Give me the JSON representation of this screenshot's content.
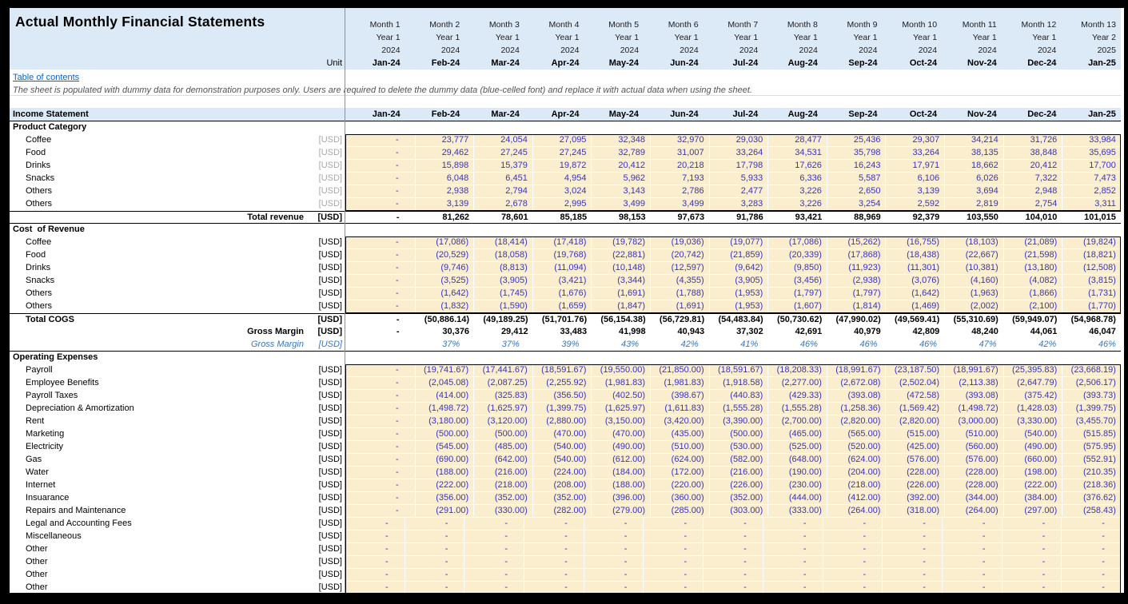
{
  "sheet": {
    "title": "Actual Monthly Financial Statements",
    "unit_label": "Unit",
    "toc_link": "Table of contents",
    "disclaimer": "The sheet is populated with dummy data for demonstration purposes only. Users are required to delete the dummy data (blue-celled font) and replace it with actual data when using the sheet.",
    "statement_header": "Income Statement"
  },
  "colors": {
    "header_bg": "#DCE9F7",
    "cell_bg": "#FBEECE",
    "value_blue": "#3333CC",
    "percent_blue": "#2E79D0",
    "link_blue": "#0C64C8"
  },
  "columns": [
    {
      "month": "Month 1",
      "year_label": "Year 1",
      "year": "2024",
      "date": "Jan-24"
    },
    {
      "month": "Month 2",
      "year_label": "Year 1",
      "year": "2024",
      "date": "Feb-24"
    },
    {
      "month": "Month 3",
      "year_label": "Year 1",
      "year": "2024",
      "date": "Mar-24"
    },
    {
      "month": "Month 4",
      "year_label": "Year 1",
      "year": "2024",
      "date": "Apr-24"
    },
    {
      "month": "Month 5",
      "year_label": "Year 1",
      "year": "2024",
      "date": "May-24"
    },
    {
      "month": "Month 6",
      "year_label": "Year 1",
      "year": "2024",
      "date": "Jun-24"
    },
    {
      "month": "Month 7",
      "year_label": "Year 1",
      "year": "2024",
      "date": "Jul-24"
    },
    {
      "month": "Month 8",
      "year_label": "Year 1",
      "year": "2024",
      "date": "Aug-24"
    },
    {
      "month": "Month 9",
      "year_label": "Year 1",
      "year": "2024",
      "date": "Sep-24"
    },
    {
      "month": "Month 10",
      "year_label": "Year 1",
      "year": "2024",
      "date": "Oct-24"
    },
    {
      "month": "Month 11",
      "year_label": "Year 1",
      "year": "2024",
      "date": "Nov-24"
    },
    {
      "month": "Month 12",
      "year_label": "Year 1",
      "year": "2024",
      "date": "Dec-24"
    },
    {
      "month": "Month 13",
      "year_label": "Year 2",
      "year": "2025",
      "date": "Jan-25"
    }
  ],
  "rows": [
    {
      "kind": "section",
      "label": "Product Category"
    },
    {
      "kind": "data",
      "label": "Coffee",
      "unit": "[USD]",
      "unit_style": "gray",
      "values": [
        "-",
        "23,777",
        "24,054",
        "27,095",
        "32,348",
        "32,970",
        "29,030",
        "28,477",
        "25,436",
        "29,307",
        "34,214",
        "31,726",
        "33,984"
      ]
    },
    {
      "kind": "data",
      "label": "Food",
      "unit": "[USD]",
      "unit_style": "gray",
      "values": [
        "-",
        "29,462",
        "27,245",
        "27,245",
        "32,789",
        "31,007",
        "33,264",
        "34,531",
        "35,798",
        "33,264",
        "38,135",
        "38,848",
        "35,695"
      ]
    },
    {
      "kind": "data",
      "label": "Drinks",
      "unit": "[USD]",
      "unit_style": "gray",
      "values": [
        "-",
        "15,898",
        "15,379",
        "19,872",
        "20,412",
        "20,218",
        "17,798",
        "17,626",
        "16,243",
        "17,971",
        "18,662",
        "20,412",
        "17,700"
      ]
    },
    {
      "kind": "data",
      "label": "Snacks",
      "unit": "[USD]",
      "unit_style": "gray",
      "values": [
        "-",
        "6,048",
        "6,451",
        "4,954",
        "5,962",
        "7,193",
        "5,933",
        "6,336",
        "5,587",
        "6,106",
        "6,026",
        "7,322",
        "7,473"
      ]
    },
    {
      "kind": "data",
      "label": "Others",
      "unit": "[USD]",
      "unit_style": "gray",
      "values": [
        "-",
        "2,938",
        "2,794",
        "3,024",
        "3,143",
        "2,786",
        "2,477",
        "3,226",
        "2,650",
        "3,139",
        "3,694",
        "2,948",
        "2,852"
      ]
    },
    {
      "kind": "data",
      "label": "Others",
      "unit": "[USD]",
      "unit_style": "gray",
      "values": [
        "-",
        "3,139",
        "2,678",
        "2,995",
        "3,499",
        "3,499",
        "3,283",
        "3,226",
        "3,254",
        "2,592",
        "2,819",
        "2,754",
        "3,311"
      ]
    },
    {
      "kind": "total-right",
      "label": "Total revenue",
      "unit": "[USD]",
      "unit_style": "bold",
      "values": [
        "-",
        "81,262",
        "78,601",
        "85,185",
        "98,153",
        "97,673",
        "91,786",
        "93,421",
        "88,969",
        "92,379",
        "103,550",
        "104,010",
        "101,015"
      ]
    },
    {
      "kind": "section",
      "label": "Cost  of Revenue"
    },
    {
      "kind": "data",
      "label": "Coffee",
      "unit": "[USD]",
      "unit_style": "plain",
      "values": [
        "-",
        "(17,086)",
        "(18,414)",
        "(17,418)",
        "(19,782)",
        "(19,036)",
        "(19,077)",
        "(17,086)",
        "(15,262)",
        "(16,755)",
        "(18,103)",
        "(21,089)",
        "(19,824)"
      ]
    },
    {
      "kind": "data",
      "label": "Food",
      "unit": "[USD]",
      "unit_style": "plain",
      "values": [
        "-",
        "(20,529)",
        "(18,058)",
        "(19,768)",
        "(22,881)",
        "(20,742)",
        "(21,859)",
        "(20,339)",
        "(17,868)",
        "(18,438)",
        "(22,667)",
        "(21,598)",
        "(18,821)"
      ]
    },
    {
      "kind": "data",
      "label": "Drinks",
      "unit": "[USD]",
      "unit_style": "plain",
      "values": [
        "-",
        "(9,746)",
        "(8,813)",
        "(11,094)",
        "(10,148)",
        "(12,597)",
        "(9,642)",
        "(9,850)",
        "(11,923)",
        "(11,301)",
        "(10,381)",
        "(13,180)",
        "(12,508)"
      ]
    },
    {
      "kind": "data",
      "label": "Snacks",
      "unit": "[USD]",
      "unit_style": "plain",
      "values": [
        "-",
        "(3,525)",
        "(3,905)",
        "(3,421)",
        "(3,344)",
        "(4,355)",
        "(3,905)",
        "(3,456)",
        "(2,938)",
        "(3,076)",
        "(4,160)",
        "(4,082)",
        "(3,815)"
      ]
    },
    {
      "kind": "data",
      "label": "Others",
      "unit": "[USD]",
      "unit_style": "plain",
      "values": [
        "-",
        "(1,642)",
        "(1,745)",
        "(1,676)",
        "(1,691)",
        "(1,788)",
        "(1,953)",
        "(1,797)",
        "(1,797)",
        "(1,642)",
        "(1,963)",
        "(1,866)",
        "(1,731)"
      ]
    },
    {
      "kind": "data",
      "label": "Others",
      "unit": "[USD]",
      "unit_style": "plain",
      "values": [
        "-",
        "(1,832)",
        "(1,590)",
        "(1,659)",
        "(1,847)",
        "(1,691)",
        "(1,953)",
        "(1,607)",
        "(1,814)",
        "(1,469)",
        "(2,002)",
        "(2,100)",
        "(1,770)"
      ]
    },
    {
      "kind": "total-left",
      "label": "Total COGS",
      "unit": "[USD]",
      "unit_style": "bold",
      "values": [
        "-",
        "(50,886.14)",
        "(49,189.25)",
        "(51,701.76)",
        "(56,154.38)",
        "(56,729.81)",
        "(54,483.84)",
        "(50,730.62)",
        "(47,990.02)",
        "(49,569.41)",
        "(55,310.69)",
        "(59,949.07)",
        "(54,968.78)"
      ]
    },
    {
      "kind": "total-right",
      "label": "Gross Margin",
      "unit": "[USD]",
      "unit_style": "bold",
      "values": [
        "-",
        "30,376",
        "29,412",
        "33,483",
        "41,998",
        "40,943",
        "37,302",
        "42,691",
        "40,979",
        "42,809",
        "48,240",
        "44,061",
        "46,047"
      ]
    },
    {
      "kind": "pct",
      "label": "Gross Margin",
      "unit": "[USD]",
      "unit_style": "pct",
      "values": [
        "",
        "37%",
        "37%",
        "39%",
        "43%",
        "42%",
        "41%",
        "46%",
        "46%",
        "46%",
        "47%",
        "42%",
        "46%"
      ]
    },
    {
      "kind": "section",
      "label": "Operating Expenses"
    },
    {
      "kind": "data",
      "label": "Payroll",
      "unit": "[USD]",
      "unit_style": "plain",
      "values": [
        "-",
        "(19,741.67)",
        "(17,441.67)",
        "(18,591.67)",
        "(19,550.00)",
        "(21,850.00)",
        "(18,591.67)",
        "(18,208.33)",
        "(18,991.67)",
        "(23,187.50)",
        "(18,991.67)",
        "(25,395.83)",
        "(23,668.19)"
      ]
    },
    {
      "kind": "data",
      "label": "Employee Benefits",
      "unit": "[USD]",
      "unit_style": "plain",
      "values": [
        "-",
        "(2,045.08)",
        "(2,087.25)",
        "(2,255.92)",
        "(1,981.83)",
        "(1,981.83)",
        "(1,918.58)",
        "(2,277.00)",
        "(2,672.08)",
        "(2,502.04)",
        "(2,113.38)",
        "(2,647.79)",
        "(2,506.17)"
      ]
    },
    {
      "kind": "data",
      "label": "Payroll Taxes",
      "unit": "[USD]",
      "unit_style": "plain",
      "values": [
        "-",
        "(414.00)",
        "(325.83)",
        "(356.50)",
        "(402.50)",
        "(398.67)",
        "(440.83)",
        "(429.33)",
        "(393.08)",
        "(472.58)",
        "(393.08)",
        "(375.42)",
        "(393.73)"
      ]
    },
    {
      "kind": "data",
      "label": "Depreciation & Amortization",
      "unit": "[USD]",
      "unit_style": "plain",
      "values": [
        "-",
        "(1,498.72)",
        "(1,625.97)",
        "(1,399.75)",
        "(1,625.97)",
        "(1,611.83)",
        "(1,555.28)",
        "(1,555.28)",
        "(1,258.36)",
        "(1,569.42)",
        "(1,498.72)",
        "(1,428.03)",
        "(1,399.75)"
      ]
    },
    {
      "kind": "data",
      "label": "Rent",
      "unit": "[USD]",
      "unit_style": "plain",
      "values": [
        "-",
        "(3,180.00)",
        "(3,120.00)",
        "(2,880.00)",
        "(3,150.00)",
        "(3,420.00)",
        "(3,390.00)",
        "(2,700.00)",
        "(2,820.00)",
        "(2,820.00)",
        "(3,000.00)",
        "(3,330.00)",
        "(3,455.70)"
      ]
    },
    {
      "kind": "data",
      "label": "Marketing",
      "unit": "[USD]",
      "unit_style": "plain",
      "values": [
        "-",
        "(500.00)",
        "(500.00)",
        "(470.00)",
        "(470.00)",
        "(435.00)",
        "(500.00)",
        "(465.00)",
        "(565.00)",
        "(515.00)",
        "(510.00)",
        "(540.00)",
        "(515.85)"
      ]
    },
    {
      "kind": "data",
      "label": "Electricity",
      "unit": "[USD]",
      "unit_style": "plain",
      "values": [
        "-",
        "(545.00)",
        "(485.00)",
        "(540.00)",
        "(490.00)",
        "(510.00)",
        "(530.00)",
        "(525.00)",
        "(520.00)",
        "(425.00)",
        "(560.00)",
        "(490.00)",
        "(575.95)"
      ]
    },
    {
      "kind": "data",
      "label": "Gas",
      "unit": "[USD]",
      "unit_style": "plain",
      "values": [
        "-",
        "(690.00)",
        "(642.00)",
        "(540.00)",
        "(612.00)",
        "(624.00)",
        "(582.00)",
        "(648.00)",
        "(624.00)",
        "(576.00)",
        "(576.00)",
        "(660.00)",
        "(552.91)"
      ]
    },
    {
      "kind": "data",
      "label": "Water",
      "unit": "[USD]",
      "unit_style": "plain",
      "values": [
        "-",
        "(188.00)",
        "(216.00)",
        "(224.00)",
        "(184.00)",
        "(172.00)",
        "(216.00)",
        "(190.00)",
        "(204.00)",
        "(228.00)",
        "(228.00)",
        "(198.00)",
        "(210.35)"
      ]
    },
    {
      "kind": "data",
      "label": "Internet",
      "unit": "[USD]",
      "unit_style": "plain",
      "values": [
        "-",
        "(222.00)",
        "(218.00)",
        "(208.00)",
        "(188.00)",
        "(220.00)",
        "(226.00)",
        "(230.00)",
        "(218.00)",
        "(226.00)",
        "(228.00)",
        "(222.00)",
        "(218.36)"
      ]
    },
    {
      "kind": "data",
      "label": "Insuarance",
      "unit": "[USD]",
      "unit_style": "plain",
      "values": [
        "-",
        "(356.00)",
        "(352.00)",
        "(352.00)",
        "(396.00)",
        "(360.00)",
        "(352.00)",
        "(444.00)",
        "(412.00)",
        "(392.00)",
        "(344.00)",
        "(384.00)",
        "(376.62)"
      ]
    },
    {
      "kind": "data",
      "label": "Repairs and Maintenance",
      "unit": "[USD]",
      "unit_style": "plain",
      "values": [
        "-",
        "(291.00)",
        "(330.00)",
        "(282.00)",
        "(279.00)",
        "(285.00)",
        "(303.00)",
        "(333.00)",
        "(264.00)",
        "(318.00)",
        "(264.00)",
        "(297.00)",
        "(258.43)"
      ]
    },
    {
      "kind": "data",
      "label": "Legal and Accounting Fees",
      "unit": "[USD]",
      "unit_style": "plain",
      "values": [
        "-",
        "-",
        "-",
        "-",
        "-",
        "-",
        "-",
        "-",
        "-",
        "-",
        "-",
        "-",
        "-"
      ]
    },
    {
      "kind": "data",
      "label": "Miscellaneous",
      "unit": "[USD]",
      "unit_style": "plain",
      "values": [
        "-",
        "-",
        "-",
        "-",
        "-",
        "-",
        "-",
        "-",
        "-",
        "-",
        "-",
        "-",
        "-"
      ]
    },
    {
      "kind": "data",
      "label": "Other",
      "unit": "[USD]",
      "unit_style": "plain",
      "values": [
        "-",
        "-",
        "-",
        "-",
        "-",
        "-",
        "-",
        "-",
        "-",
        "-",
        "-",
        "-",
        "-"
      ]
    },
    {
      "kind": "data",
      "label": "Other",
      "unit": "[USD]",
      "unit_style": "plain",
      "values": [
        "-",
        "-",
        "-",
        "-",
        "-",
        "-",
        "-",
        "-",
        "-",
        "-",
        "-",
        "-",
        "-"
      ]
    },
    {
      "kind": "data",
      "label": "Other",
      "unit": "[USD]",
      "unit_style": "plain",
      "values": [
        "-",
        "-",
        "-",
        "-",
        "-",
        "-",
        "-",
        "-",
        "-",
        "-",
        "-",
        "-",
        "-"
      ]
    },
    {
      "kind": "data",
      "label": "Other",
      "unit": "[USD]",
      "unit_style": "plain",
      "values": [
        "-",
        "-",
        "-",
        "-",
        "-",
        "-",
        "-",
        "-",
        "-",
        "-",
        "-",
        "-",
        "-"
      ]
    }
  ]
}
